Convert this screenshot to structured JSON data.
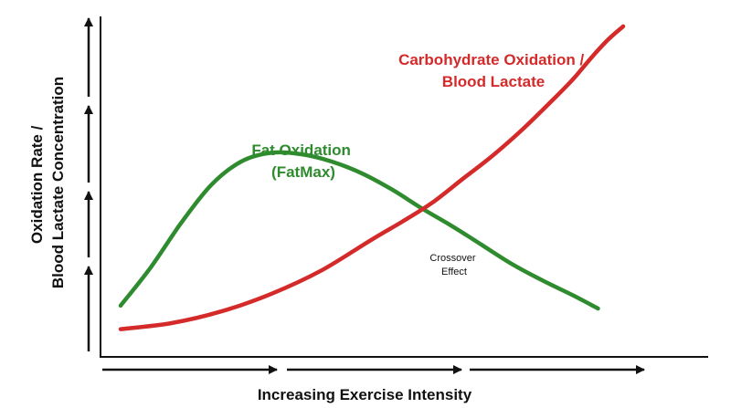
{
  "chart_data": {
    "type": "line",
    "title": "",
    "xlabel": "Increasing Exercise Intensity",
    "ylabel_lines": [
      "Oxidation Rate /",
      "Blood Lactate Concentration"
    ],
    "xlim": [
      0,
      100
    ],
    "ylim": [
      0,
      100
    ],
    "grid": false,
    "ticks": "none",
    "series": [
      {
        "name_lines": [
          "Fat Oxidation",
          "(FatMax)"
        ],
        "color": "#2e8b2e",
        "x": [
          0,
          6,
          12,
          18,
          24,
          30,
          36,
          42,
          48,
          54,
          60,
          66,
          72,
          78,
          84,
          90,
          95
        ],
        "y": [
          10,
          23,
          38,
          51,
          59,
          62,
          61.5,
          59,
          55,
          49.5,
          43,
          37,
          30.5,
          24,
          18.5,
          13.5,
          9
        ]
      },
      {
        "name_lines": [
          "Carbohydrate Oxidation /",
          "Blood Lactate"
        ],
        "color": "#d42a2a",
        "x": [
          0,
          10,
          20,
          30,
          40,
          50,
          56,
          62,
          68,
          74,
          80,
          86,
          90,
          94,
          97,
          100
        ],
        "y": [
          2,
          4,
          8,
          14,
          22,
          32.5,
          38.5,
          45,
          53,
          61,
          70,
          80,
          87,
          95,
          100.5,
          105
        ]
      }
    ],
    "annotations": [
      {
        "text_lines": [
          "Crossover",
          "Effect"
        ],
        "x": 67,
        "y": 41
      }
    ]
  }
}
